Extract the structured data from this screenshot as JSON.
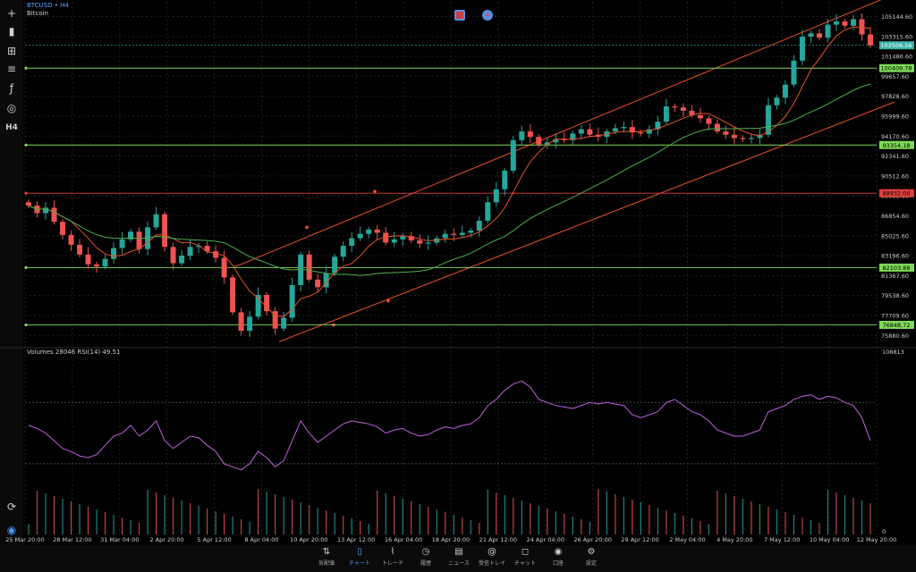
{
  "header": {
    "symbol": "BTCUSD • H4",
    "name": "Bitcoin"
  },
  "oscillator_label": "Volumes 28046 RSI(14) 49.51",
  "toolbar_icons": [
    "crosshair-icon",
    "candles-icon",
    "indicators-icon",
    "indicator-list-icon",
    "function-icon",
    "objects-icon",
    "timeframe-icon"
  ],
  "toolbar_timeframe": "H4",
  "colors": {
    "bull": "#26a69a",
    "bear": "#ef5350",
    "ma_fast": "#e8502a",
    "ma_slow": "#4caf50",
    "channel": "#e8502a",
    "hline_green": "#7ed957",
    "hline_red": "#e04040",
    "rsi": "#c060e0",
    "grid": "#1f1f1f",
    "price_tag": "#7ed957",
    "current_price": "#3ab0a8"
  },
  "chart_data": {
    "type": "candlestick",
    "price_axis": [
      "105144.60",
      "103315.60",
      "101486.60",
      "99657.60",
      "97828.60",
      "95999.60",
      "94170.60",
      "92341.60",
      "90512.60",
      "88683.60",
      "86854.60",
      "85025.60",
      "83196.60",
      "81367.60",
      "79538.60",
      "77709.60",
      "75880.60"
    ],
    "ylim": [
      75000,
      106500
    ],
    "current_price": "102506.56",
    "horizontal_levels": [
      {
        "label": "100409.78",
        "value": 100409.78,
        "color": "green"
      },
      {
        "label": "93354.18",
        "value": 93354.18,
        "color": "green"
      },
      {
        "label": "88932.00",
        "value": 88932.0,
        "color": "red"
      },
      {
        "label": "82103.88",
        "value": 82103.88,
        "color": "green"
      },
      {
        "label": "76848.72",
        "value": 76848.72,
        "color": "green"
      }
    ],
    "x_labels": [
      "25 Mar 20:00",
      "28 Mar 12:00",
      "31 Mar 04:00",
      "2 Apr 20:00",
      "5 Apr 12:00",
      "8 Apr 04:00",
      "10 Apr 20:00",
      "13 Apr 12:00",
      "16 Apr 04:00",
      "18 Apr 20:00",
      "21 Apr 12:00",
      "24 Apr 04:00",
      "26 Apr 20:00",
      "29 Apr 12:00",
      "2 May 04:00",
      "4 May 20:00",
      "7 May 12:00",
      "10 May 04:00",
      "12 May 20:00"
    ],
    "close_path": [
      87800,
      87100,
      87600,
      86300,
      85100,
      84200,
      83300,
      82400,
      82200,
      82900,
      83900,
      84700,
      85400,
      83800,
      85800,
      87000,
      84000,
      82500,
      83200,
      84000,
      84100,
      83600,
      83000,
      81200,
      78000,
      76300,
      77600,
      79600,
      78100,
      76500,
      77500,
      80500,
      83300,
      81000,
      80300,
      81600,
      83100,
      84100,
      84800,
      85200,
      85600,
      85300,
      84400,
      84700,
      85000,
      84600,
      84300,
      84400,
      84800,
      85200,
      85100,
      85300,
      85500,
      86400,
      88100,
      89300,
      91000,
      93800,
      94600,
      94100,
      93400,
      93600,
      93900,
      93800,
      94400,
      94800,
      94300,
      94100,
      94600,
      94900,
      95000,
      94500,
      94400,
      94800,
      95500,
      96900,
      96800,
      96500,
      96100,
      95800,
      95300,
      94600,
      94300,
      94000,
      93900,
      94000,
      94300,
      97000,
      97700,
      98900,
      101100,
      103300,
      103600,
      103200,
      104400,
      104700,
      104300,
      104900,
      103500,
      102500
    ],
    "volume_axis": [
      "108813",
      "0"
    ],
    "rsi_approx": [
      55,
      53,
      50,
      45,
      40,
      38,
      35,
      34,
      36,
      42,
      48,
      50,
      55,
      48,
      52,
      58,
      45,
      40,
      44,
      48,
      47,
      42,
      38,
      30,
      28,
      26,
      30,
      38,
      34,
      28,
      32,
      45,
      58,
      50,
      44,
      48,
      52,
      56,
      58,
      57,
      56,
      54,
      50,
      52,
      53,
      50,
      48,
      49,
      52,
      54,
      53,
      55,
      56,
      60,
      68,
      72,
      78,
      82,
      84,
      80,
      72,
      70,
      68,
      67,
      66,
      68,
      70,
      69,
      70,
      69,
      68,
      62,
      60,
      62,
      64,
      70,
      72,
      68,
      64,
      62,
      58,
      52,
      50,
      48,
      48,
      50,
      52,
      64,
      66,
      68,
      72,
      74,
      75,
      72,
      74,
      73,
      70,
      68,
      60,
      45
    ]
  },
  "bottom_nav": [
    {
      "label": "気配値",
      "icon": "quotes-icon"
    },
    {
      "label": "チャート",
      "icon": "chart-icon",
      "active": true
    },
    {
      "label": "トレード",
      "icon": "trade-icon"
    },
    {
      "label": "履歴",
      "icon": "history-icon"
    },
    {
      "label": "ニュース",
      "icon": "news-icon"
    },
    {
      "label": "受信トレイ",
      "icon": "inbox-icon"
    },
    {
      "label": "チャット",
      "icon": "chat-icon"
    },
    {
      "label": "口座",
      "icon": "account-icon"
    },
    {
      "label": "設定",
      "icon": "settings-icon"
    }
  ]
}
